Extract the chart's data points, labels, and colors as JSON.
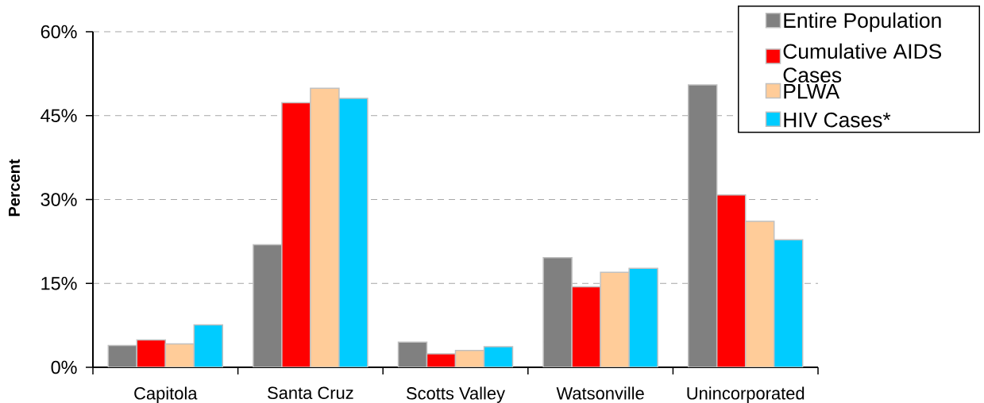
{
  "chart_data": {
    "type": "bar",
    "ylabel": "Percent",
    "categories": [
      "Capitola",
      "Santa Cruz",
      "Scotts Valley",
      "Watsonville",
      "Unincorporated"
    ],
    "series": [
      {
        "name": "Entire Population",
        "color": "#808080",
        "values": [
          3.9,
          21.9,
          4.5,
          19.6,
          50.5
        ]
      },
      {
        "name": "Cumulative AIDS Cases",
        "color": "#ff0000",
        "values": [
          4.9,
          47.3,
          2.4,
          14.4,
          30.8
        ]
      },
      {
        "name": "PLWA",
        "color": "#ffcc99",
        "values": [
          4.2,
          49.9,
          3.0,
          17.0,
          26.1
        ]
      },
      {
        "name": "HIV Cases*",
        "color": "#00ccff",
        "values": [
          7.6,
          48.1,
          3.7,
          17.7,
          22.8
        ]
      }
    ],
    "ylim": [
      0,
      60
    ],
    "yticks": [
      {
        "value": 0,
        "label": "0%"
      },
      {
        "value": 15,
        "label": "15%"
      },
      {
        "value": 30,
        "label": "30%"
      },
      {
        "value": 45,
        "label": "45%"
      },
      {
        "value": 60,
        "label": "60%"
      }
    ],
    "grid": "y",
    "legend": "top right"
  }
}
